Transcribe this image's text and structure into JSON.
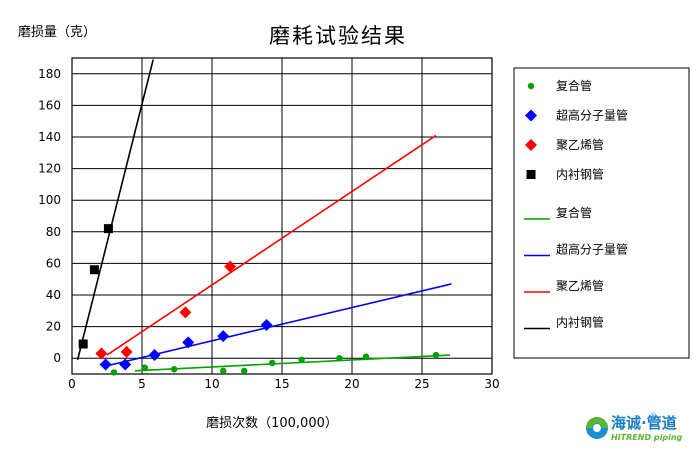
{
  "chart_data": {
    "type": "scatter",
    "title": "磨耗试验结果",
    "xlabel": "磨损次数（100,000）",
    "ylabel": "磨损量（克）",
    "xlim": [
      0,
      30
    ],
    "ylim": [
      -10,
      190
    ],
    "xticks": [
      0,
      5,
      10,
      15,
      20,
      25,
      30
    ],
    "yticks": [
      0,
      20,
      40,
      60,
      80,
      100,
      120,
      140,
      160,
      180
    ],
    "grid": true,
    "legend_position": "right",
    "series": [
      {
        "name": "复合管",
        "color": "#00a000",
        "marker": "circle",
        "points": [
          [
            3,
            -9
          ],
          [
            5.2,
            -6
          ],
          [
            7.3,
            -7
          ],
          [
            10.8,
            -8
          ],
          [
            12.3,
            -8
          ],
          [
            14.3,
            -3
          ],
          [
            16.4,
            -1
          ],
          [
            19.1,
            0
          ],
          [
            21,
            1
          ],
          [
            26,
            2
          ]
        ],
        "trendline": [
          [
            4.5,
            -8
          ],
          [
            27,
            2
          ]
        ],
        "trend_label": "复合管"
      },
      {
        "name": "超高分子量管",
        "color": "#0000ff",
        "marker": "diamond",
        "points": [
          [
            2.4,
            -4
          ],
          [
            3.8,
            -4
          ],
          [
            5.9,
            2
          ],
          [
            8.3,
            10
          ],
          [
            10.8,
            14
          ],
          [
            13.9,
            21
          ]
        ],
        "trendline": [
          [
            2.4,
            -5
          ],
          [
            27.1,
            47
          ]
        ],
        "trend_label": "超高分子量管"
      },
      {
        "name": "聚乙烯管",
        "color": "#ff0000",
        "marker": "diamond",
        "points": [
          [
            2.1,
            3
          ],
          [
            3.9,
            4
          ],
          [
            8.1,
            29
          ],
          [
            11.3,
            58
          ]
        ],
        "trendline": [
          [
            2.5,
            2
          ],
          [
            26,
            141
          ]
        ],
        "trend_label": "聚乙烯管"
      },
      {
        "name": "内衬钢管",
        "color": "#000000",
        "marker": "square",
        "points": [
          [
            0.8,
            9
          ],
          [
            1.6,
            56
          ],
          [
            2.6,
            82
          ]
        ],
        "trendline": [
          [
            0.4,
            -1
          ],
          [
            5.8,
            189
          ]
        ],
        "trend_label": "内衬钢管"
      }
    ]
  },
  "logo": {
    "cn": "海诚·管道",
    "en": "HITREND piping",
    "reg": "®"
  }
}
